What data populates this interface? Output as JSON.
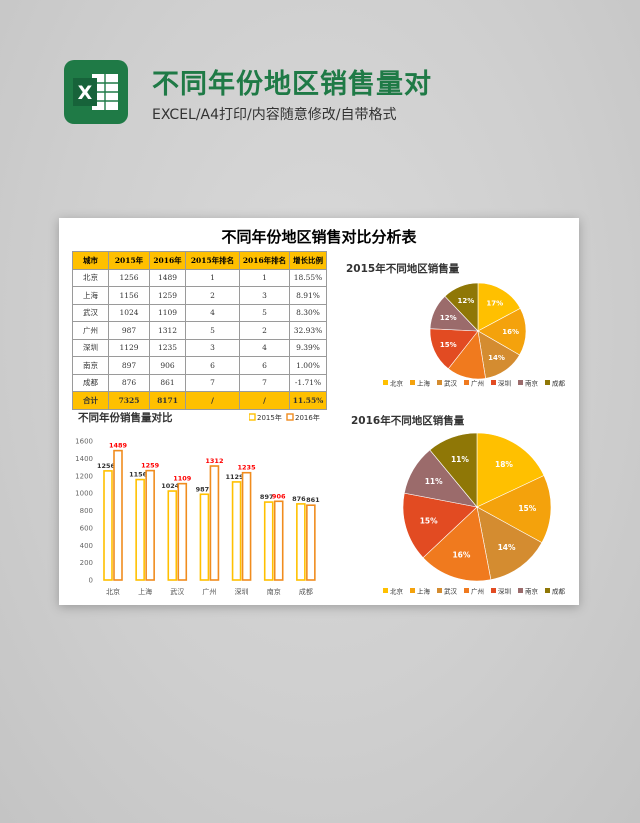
{
  "header": {
    "title": "不同年份地区销售量对",
    "subtitle": "EXCEL/A4打印/内容随意修改/自带格式",
    "logo_letter": "X"
  },
  "sheet": {
    "title": "不同年份地区销售对比分析表",
    "table": {
      "columns": [
        "城市",
        "2015年",
        "2016年",
        "2015年排名",
        "2016年排名",
        "增长比例"
      ],
      "rows": [
        [
          "北京",
          "1256",
          "1489",
          "1",
          "1",
          "18.55%"
        ],
        [
          "上海",
          "1156",
          "1259",
          "2",
          "3",
          "8.91%"
        ],
        [
          "武汉",
          "1024",
          "1109",
          "4",
          "5",
          "8.30%"
        ],
        [
          "广州",
          "987",
          "1312",
          "5",
          "2",
          "32.93%"
        ],
        [
          "深圳",
          "1129",
          "1235",
          "3",
          "4",
          "9.39%"
        ],
        [
          "南京",
          "897",
          "906",
          "6",
          "6",
          "1.00%"
        ],
        [
          "成都",
          "876",
          "861",
          "7",
          "7",
          "-1.71%"
        ]
      ],
      "total": [
        "合计",
        "7325",
        "8171",
        "/",
        "/",
        "11.55%"
      ]
    }
  },
  "colors": {
    "header_green": "#1f7a46",
    "table_header": "#ffc000",
    "bar_2015": "#ffc000",
    "bar_2016": "#f08c1e",
    "highlight_label": "#ff0000"
  },
  "chart_data": [
    {
      "type": "bar",
      "title": "不同年份销售量对比",
      "categories": [
        "北京",
        "上海",
        "武汉",
        "广州",
        "深圳",
        "南京",
        "成都"
      ],
      "series": [
        {
          "name": "2015年",
          "values": [
            1256,
            1156,
            1024,
            987,
            1129,
            897,
            876
          ]
        },
        {
          "name": "2016年",
          "values": [
            1489,
            1259,
            1109,
            1312,
            1235,
            906,
            861
          ]
        }
      ],
      "ylim": [
        0,
        1600
      ],
      "yticks": [
        0,
        200,
        400,
        600,
        800,
        1000,
        1200,
        1400,
        1600
      ],
      "legend": "top-right"
    },
    {
      "type": "pie",
      "title": "2015年不同地区销售量",
      "labels": [
        "北京",
        "上海",
        "武汉",
        "广州",
        "深圳",
        "南京",
        "成都"
      ],
      "values": [
        17,
        16,
        14,
        13,
        15,
        12,
        12
      ],
      "display_labels": [
        "17%",
        "16%",
        "14%",
        "",
        "15%",
        "12%",
        "12%"
      ],
      "colors": [
        "#ffc000",
        "#f4a20c",
        "#d48c30",
        "#f07a1e",
        "#e24b22",
        "#9b6b6b",
        "#8f7706"
      ],
      "legend": "bottom"
    },
    {
      "type": "pie",
      "title": "2016年不同地区销售量",
      "labels": [
        "北京",
        "上海",
        "武汉",
        "广州",
        "深圳",
        "南京",
        "成都"
      ],
      "values": [
        18,
        15,
        14,
        16,
        15,
        11,
        11
      ],
      "display_labels": [
        "18%",
        "15%",
        "14%",
        "16%",
        "15%",
        "11%",
        "11%"
      ],
      "colors": [
        "#ffc000",
        "#f4a20c",
        "#d48c30",
        "#f07a1e",
        "#e24b22",
        "#9b6b6b",
        "#8f7706"
      ],
      "legend": "bottom"
    }
  ]
}
